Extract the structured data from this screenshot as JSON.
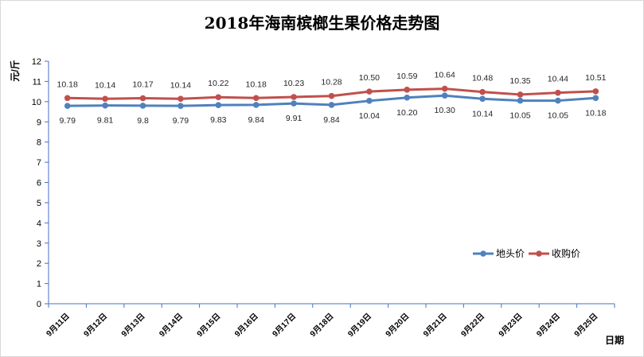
{
  "chart_data": {
    "type": "line",
    "title": "2018年海南槟榔生果价格走势图",
    "xlabel": "日期",
    "ylabel": "元/斤",
    "categories": [
      "9月11日",
      "9月12日",
      "9月13日",
      "9月14日",
      "9月15日",
      "9月16日",
      "9月17日",
      "9月18日",
      "9月19日",
      "9月20日",
      "9月21日",
      "9月22日",
      "9月23日",
      "9月24日",
      "9月25日"
    ],
    "ylim": [
      0,
      12
    ],
    "yticks": [
      "0",
      "1",
      "2",
      "3",
      "4",
      "5",
      "6",
      "7",
      "8",
      "9",
      "10",
      "11",
      "12"
    ],
    "grid": false,
    "legend": "right-middle",
    "series": [
      {
        "name": "地头价",
        "color": "#4f81bd",
        "values": [
          9.79,
          9.81,
          9.8,
          9.79,
          9.83,
          9.84,
          9.91,
          9.84,
          10.04,
          10.2,
          10.3,
          10.14,
          10.05,
          10.05,
          10.18
        ],
        "labels": [
          "9.79",
          "9.81",
          "9.8",
          "9.79",
          "9.83",
          "9.84",
          "9.91",
          "9.84",
          "10.04",
          "10.20",
          "10.30",
          "10.14",
          "10.05",
          "10.05",
          "10.18"
        ],
        "label_position": "below"
      },
      {
        "name": "收购价",
        "color": "#c0504d",
        "values": [
          10.18,
          10.14,
          10.17,
          10.14,
          10.22,
          10.18,
          10.23,
          10.28,
          10.5,
          10.59,
          10.64,
          10.48,
          10.35,
          10.44,
          10.51
        ],
        "labels": [
          "10.18",
          "10.14",
          "10.17",
          "10.14",
          "10.22",
          "10.18",
          "10.23",
          "10.28",
          "10.50",
          "10.59",
          "10.64",
          "10.48",
          "10.35",
          "10.44",
          "10.51"
        ],
        "label_position": "above"
      }
    ]
  }
}
